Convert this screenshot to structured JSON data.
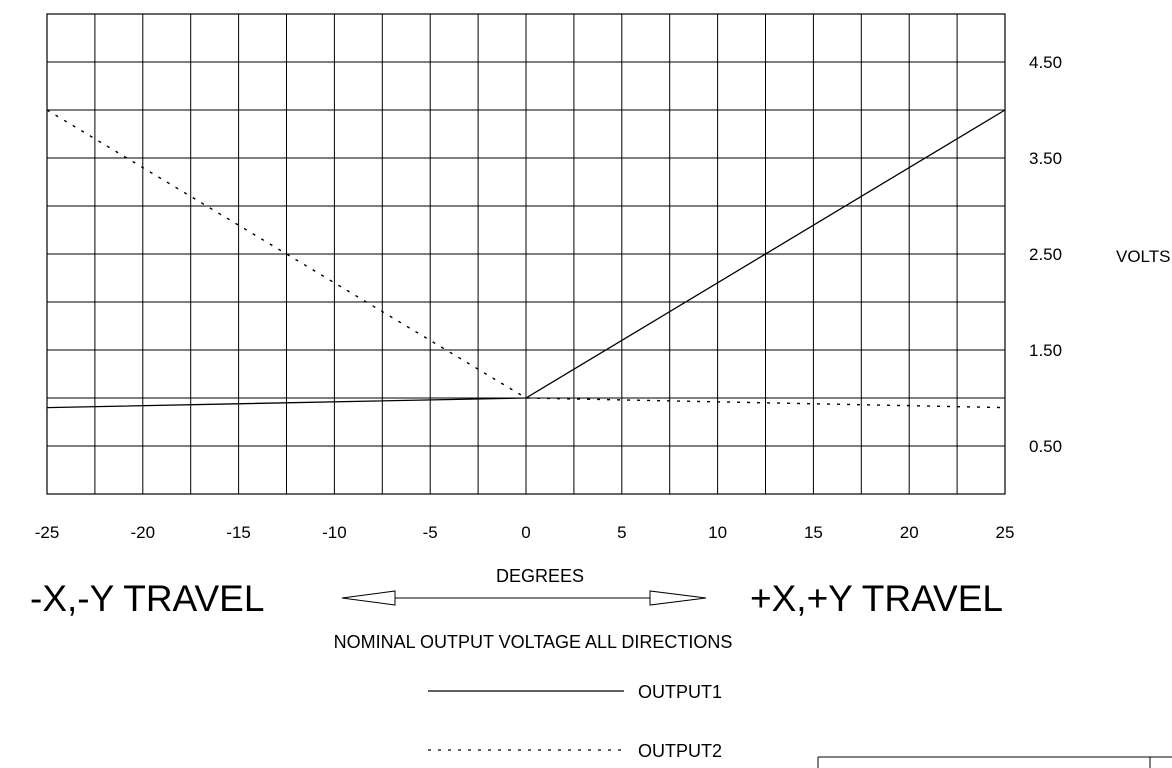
{
  "chart_data": {
    "type": "line",
    "xlabel": "DEGREES",
    "ylabel": "VOLTS",
    "xlim": [
      -25,
      25
    ],
    "ylim": [
      0,
      5
    ],
    "grid": true,
    "x_ticks": [
      "-25",
      "-20",
      "-15",
      "-10",
      "-5",
      "0",
      "5",
      "10",
      "15",
      "20",
      "25"
    ],
    "y_ticks": [
      {
        "value": 4.5,
        "label": "4.50"
      },
      {
        "value": 3.5,
        "label": "3.50"
      },
      {
        "value": 2.5,
        "label": "2.50"
      },
      {
        "value": 1.5,
        "label": "1.50"
      },
      {
        "value": 0.5,
        "label": "0.50"
      }
    ],
    "series": [
      {
        "name": "OUTPUT1",
        "style": "solid",
        "x": [
          -25,
          0,
          25
        ],
        "y": [
          0.9,
          1.0,
          4.0
        ]
      },
      {
        "name": "OUTPUT2",
        "style": "dotted",
        "x": [
          -25,
          0,
          25
        ],
        "y": [
          4.0,
          1.0,
          0.9
        ]
      }
    ],
    "caption": "NOMINAL OUTPUT VOLTAGE ALL DIRECTIONS",
    "left_direction": "-X,-Y TRAVEL",
    "right_direction": "+X,+Y TRAVEL",
    "legend_placement": "bottom-center"
  },
  "colors": {
    "line": "#000000",
    "background": "#ffffff"
  }
}
